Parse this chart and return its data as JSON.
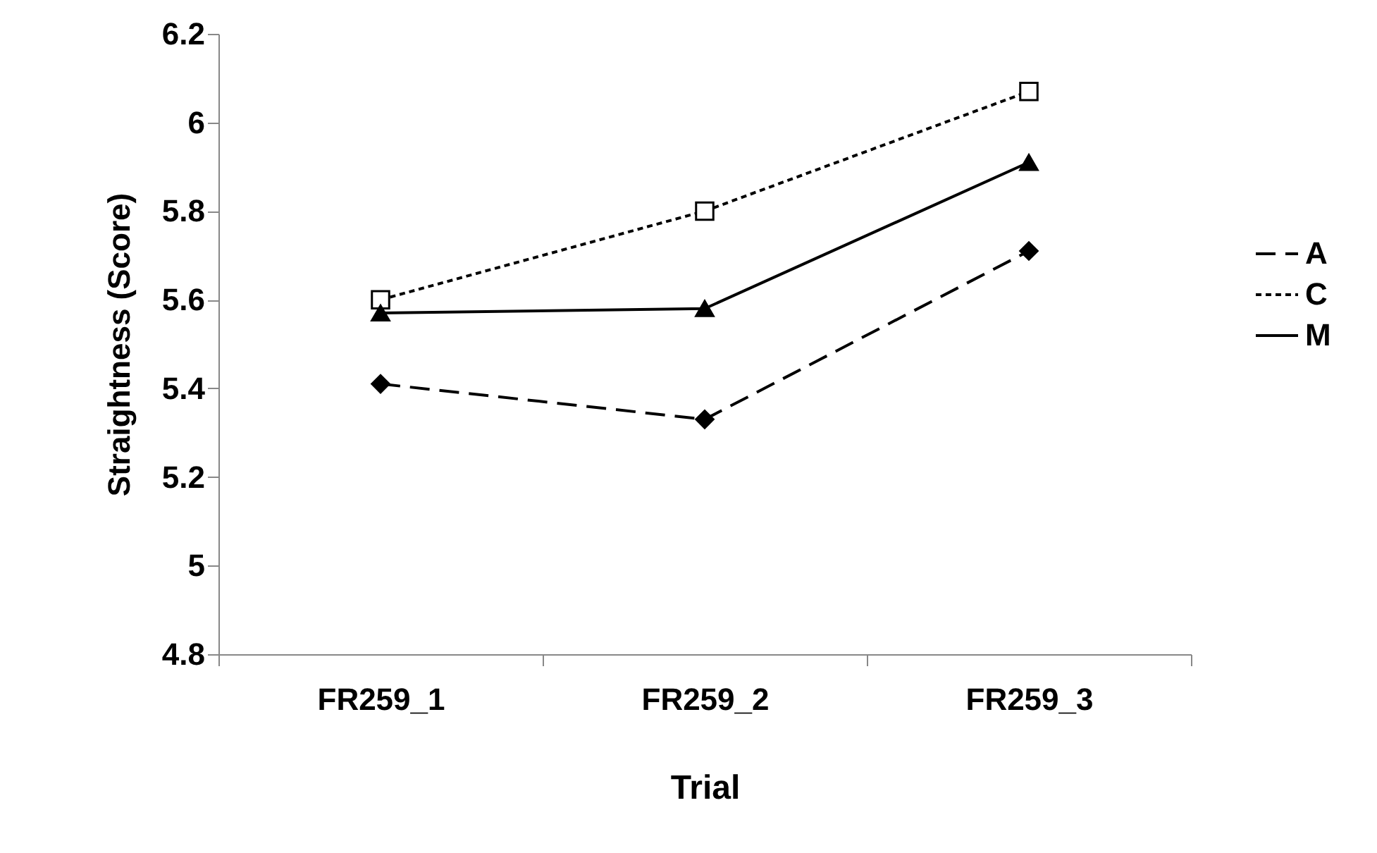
{
  "chart_data": {
    "type": "line",
    "xlabel": "Trial",
    "ylabel": "Straightness (Score)",
    "categories": [
      "FR259_1",
      "FR259_2",
      "FR259_3"
    ],
    "series": [
      {
        "name": "A",
        "color": "#000000",
        "marker": "diamond",
        "line_style": "dashed",
        "values": [
          5.41,
          5.33,
          5.71
        ]
      },
      {
        "name": "C",
        "color": "#000000",
        "marker": "square",
        "line_style": "dotted",
        "values": [
          5.6,
          5.8,
          6.07
        ]
      },
      {
        "name": "M",
        "color": "#000000",
        "marker": "triangle",
        "line_style": "solid",
        "values": [
          5.57,
          5.58,
          5.91
        ]
      }
    ],
    "ylim": [
      4.8,
      6.2
    ],
    "yticks": [
      4.8,
      5,
      5.2,
      5.4,
      5.6,
      5.8,
      6,
      6.2
    ],
    "grid": false,
    "legend": "right"
  }
}
